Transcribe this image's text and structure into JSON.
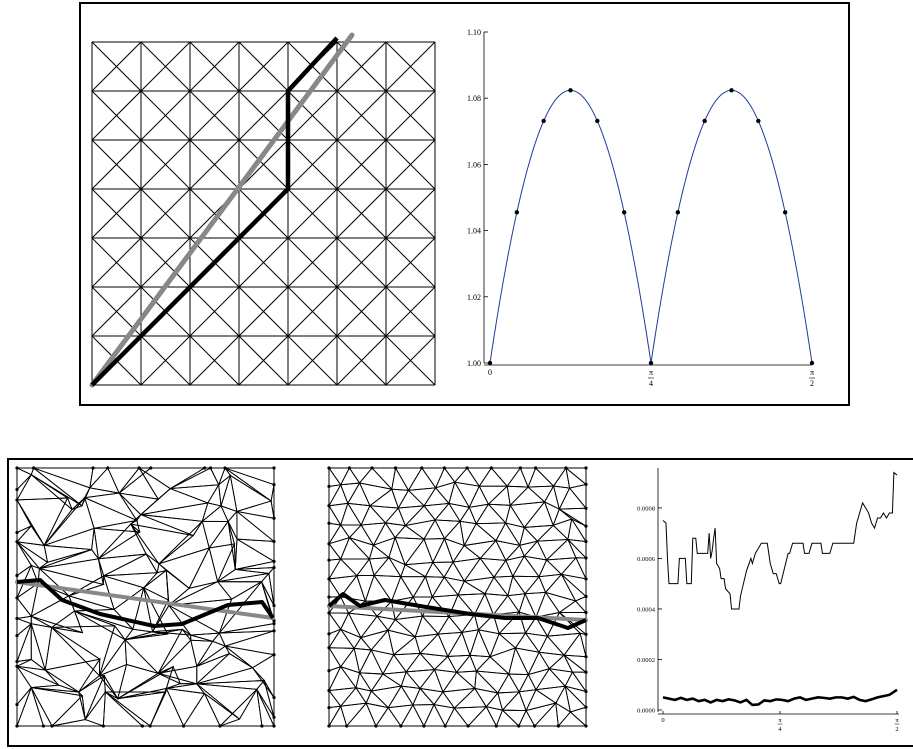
{
  "top_chart": {
    "y_ticks": [
      "1.00",
      "1.02",
      "1.04",
      "1.06",
      "1.08",
      "1.10"
    ],
    "x_ticks": [
      {
        "num": "0",
        "den": ""
      },
      {
        "num": "π",
        "den": "4"
      },
      {
        "num": "π",
        "den": "2"
      }
    ],
    "ylim": [
      1.0,
      1.1
    ],
    "xlim": [
      0,
      1.5708
    ],
    "sample_angles_deg": [
      0,
      7.5,
      15,
      22.5,
      30,
      37.5,
      45,
      52.5,
      60,
      67.5,
      75,
      82.5,
      90
    ],
    "curve_color": "#1f3b9c",
    "point_color": "#000000"
  },
  "bottom_chart": {
    "y_ticks": [
      "0.0000",
      "0.0002",
      "0.0004",
      "0.0006",
      "0.0008"
    ],
    "x_ticks": [
      {
        "num": "0",
        "den": ""
      },
      {
        "num": "π",
        "den": "4"
      },
      {
        "num": "π",
        "den": "2"
      }
    ],
    "ylim": [
      0,
      0.00095
    ],
    "xlim": [
      0,
      1.5708
    ],
    "series": [
      {
        "style": "thin",
        "x": [
          0.0,
          0.02,
          0.03,
          0.04,
          0.1,
          0.11,
          0.15,
          0.16,
          0.19,
          0.2,
          0.22,
          0.23,
          0.3,
          0.31,
          0.32,
          0.33,
          0.34,
          0.35,
          0.36,
          0.38,
          0.39,
          0.41,
          0.42,
          0.45,
          0.46,
          0.51,
          0.52,
          0.54,
          0.56,
          0.59,
          0.6,
          0.62,
          0.64,
          0.66,
          0.7,
          0.72,
          0.74,
          0.76,
          0.78,
          0.79,
          0.84,
          0.85,
          0.87,
          0.89,
          0.94,
          0.95,
          0.98,
          1.0,
          1.06,
          1.07,
          1.12,
          1.14,
          1.2,
          1.22,
          1.28,
          1.3,
          1.34,
          1.36,
          1.38,
          1.4,
          1.42,
          1.44,
          1.46,
          1.48,
          1.5,
          1.52,
          1.54,
          1.55,
          1.5708
        ],
        "y": [
          0.00075,
          0.00074,
          0.0006,
          0.0005,
          0.0005,
          0.0006,
          0.0006,
          0.0005,
          0.0005,
          0.00068,
          0.00068,
          0.00062,
          0.00062,
          0.0007,
          0.0006,
          0.00063,
          0.00068,
          0.00072,
          0.00058,
          0.00056,
          0.00052,
          0.00052,
          0.00048,
          0.00046,
          0.0004,
          0.0004,
          0.00045,
          0.0005,
          0.00055,
          0.0006,
          0.00058,
          0.00062,
          0.00064,
          0.00066,
          0.00066,
          0.00058,
          0.00054,
          0.00054,
          0.0005,
          0.0005,
          0.00062,
          0.00062,
          0.00066,
          0.00066,
          0.00066,
          0.00062,
          0.00062,
          0.00066,
          0.00066,
          0.00062,
          0.00062,
          0.00066,
          0.00066,
          0.00066,
          0.00066,
          0.00074,
          0.00082,
          0.0008,
          0.00078,
          0.00074,
          0.00072,
          0.00076,
          0.00076,
          0.00078,
          0.00076,
          0.00078,
          0.00078,
          0.00094,
          0.00093
        ]
      },
      {
        "style": "thick",
        "x": [
          0.0,
          0.04,
          0.08,
          0.12,
          0.16,
          0.2,
          0.24,
          0.28,
          0.32,
          0.36,
          0.4,
          0.44,
          0.48,
          0.52,
          0.56,
          0.6,
          0.64,
          0.68,
          0.72,
          0.76,
          0.8,
          0.84,
          0.88,
          0.92,
          0.96,
          1.0,
          1.04,
          1.08,
          1.12,
          1.16,
          1.2,
          1.24,
          1.28,
          1.32,
          1.36,
          1.4,
          1.44,
          1.48,
          1.52,
          1.5708
        ],
        "y": [
          5e-05,
          4.5e-05,
          4e-05,
          4.8e-05,
          4e-05,
          4.5e-05,
          3.5e-05,
          4e-05,
          3e-05,
          4e-05,
          3.5e-05,
          4.2e-05,
          3.8e-05,
          3e-05,
          4e-05,
          2e-05,
          2.2e-05,
          3.8e-05,
          3.5e-05,
          4.2e-05,
          4e-05,
          3.5e-05,
          4.5e-05,
          5e-05,
          4e-05,
          4.5e-05,
          5e-05,
          4.8e-05,
          4.5e-05,
          5e-05,
          5e-05,
          4.5e-05,
          5.2e-05,
          4e-05,
          3.5e-05,
          4.2e-05,
          5e-05,
          5.5e-05,
          6e-05,
          8e-05
        ]
      }
    ]
  },
  "colors": {
    "mesh_line": "#000000",
    "ray_gray": "#888888",
    "path_black": "#000000",
    "frame_border": "#000000"
  }
}
